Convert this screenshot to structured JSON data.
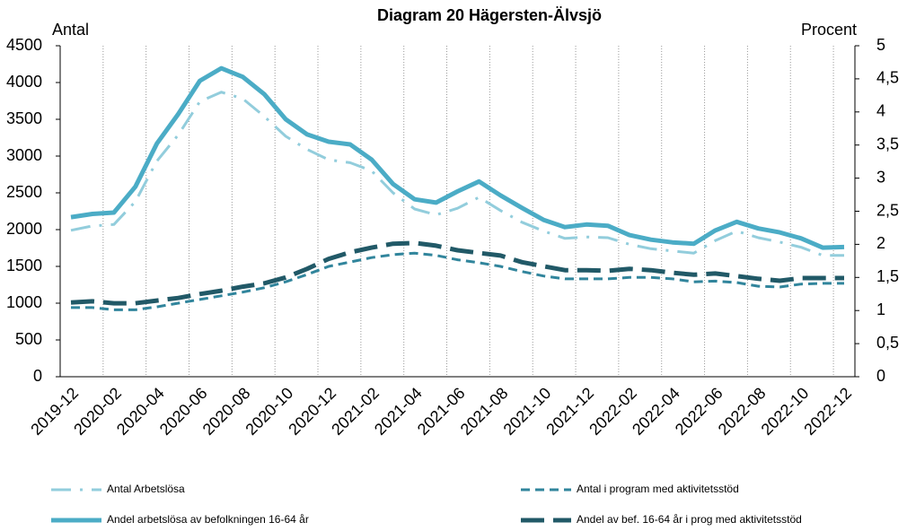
{
  "chart_data": {
    "type": "line",
    "title": "Diagram 20 Hägersten-Älvsjö",
    "ylabel": "Antal",
    "y2label": "Procent",
    "categories": [
      "2019-12",
      null,
      "2020-02",
      null,
      "2020-04",
      null,
      "2020-06",
      null,
      "2020-08",
      null,
      "2020-10",
      null,
      "2020-12",
      null,
      "2021-02",
      null,
      "2021-04",
      null,
      "2021-06",
      null,
      "2021-08",
      null,
      "2021-10",
      null,
      "2021-12",
      null,
      "2022-02",
      null,
      "2022-04",
      null,
      "2022-06",
      null,
      "2022-08",
      null,
      "2022-10",
      null,
      "2022-12"
    ],
    "ylim": [
      0,
      4500
    ],
    "yticks": [
      0,
      500,
      1000,
      1500,
      2000,
      2500,
      3000,
      3500,
      4000,
      4500
    ],
    "y2lim": [
      0,
      5
    ],
    "y2ticks": [
      0,
      {
        "value": 0.5,
        "label": "0,5"
      },
      1,
      {
        "value": 1.5,
        "label": "1,5"
      },
      2,
      {
        "value": 2.5,
        "label": "2,5"
      },
      3,
      {
        "value": 3.5,
        "label": "3,5"
      },
      4,
      {
        "value": 4.5,
        "label": "4,5"
      },
      5
    ],
    "grid": true,
    "legend": "bottom",
    "series": [
      {
        "name": "Antal Arbetslösa",
        "color": "#92cddc",
        "style": "dash-dot",
        "values": [
          1990,
          2050,
          2070,
          2380,
          2930,
          3290,
          3740,
          3870,
          3780,
          3540,
          3270,
          3090,
          2950,
          2910,
          2800,
          2500,
          2280,
          2200,
          2290,
          2440,
          2260,
          2100,
          1980,
          1880,
          1900,
          1890,
          1800,
          1740,
          1710,
          1680,
          1850,
          1980,
          1890,
          1830,
          1760,
          1650,
          1650
        ]
      },
      {
        "name": "Antal i program med aktivitetsstöd",
        "color": "#31859c",
        "style": "dashed",
        "values": [
          940,
          940,
          910,
          910,
          950,
          1000,
          1050,
          1100,
          1150,
          1210,
          1290,
          1390,
          1500,
          1560,
          1620,
          1660,
          1680,
          1650,
          1590,
          1550,
          1500,
          1430,
          1370,
          1330,
          1330,
          1330,
          1350,
          1350,
          1330,
          1290,
          1300,
          1280,
          1230,
          1220,
          1260,
          1270,
          1270
        ]
      },
      {
        "name": "Andel arbetslösa av befolkningen 16-64 år",
        "color": "#4bacc6",
        "style": "solid",
        "axis": "y2",
        "values": [
          2.41,
          2.46,
          2.48,
          2.87,
          3.52,
          3.97,
          4.47,
          4.66,
          4.53,
          4.27,
          3.89,
          3.66,
          3.55,
          3.51,
          3.28,
          2.91,
          2.68,
          2.63,
          2.8,
          2.95,
          2.74,
          2.55,
          2.37,
          2.26,
          2.3,
          2.28,
          2.14,
          2.07,
          2.03,
          2.01,
          2.21,
          2.34,
          2.24,
          2.18,
          2.09,
          1.95,
          1.96
        ]
      },
      {
        "name": "Andel av bef. 16-64 år i prog med aktivitetsstöd",
        "color": "#215967",
        "style": "long-dash",
        "axis": "y2",
        "values": [
          1.12,
          1.14,
          1.11,
          1.11,
          1.15,
          1.19,
          1.25,
          1.3,
          1.36,
          1.41,
          1.5,
          1.63,
          1.78,
          1.88,
          1.95,
          2.01,
          2.02,
          1.98,
          1.91,
          1.87,
          1.83,
          1.73,
          1.67,
          1.61,
          1.61,
          1.6,
          1.63,
          1.61,
          1.57,
          1.54,
          1.56,
          1.52,
          1.48,
          1.45,
          1.49,
          1.49,
          1.49
        ]
      }
    ]
  }
}
